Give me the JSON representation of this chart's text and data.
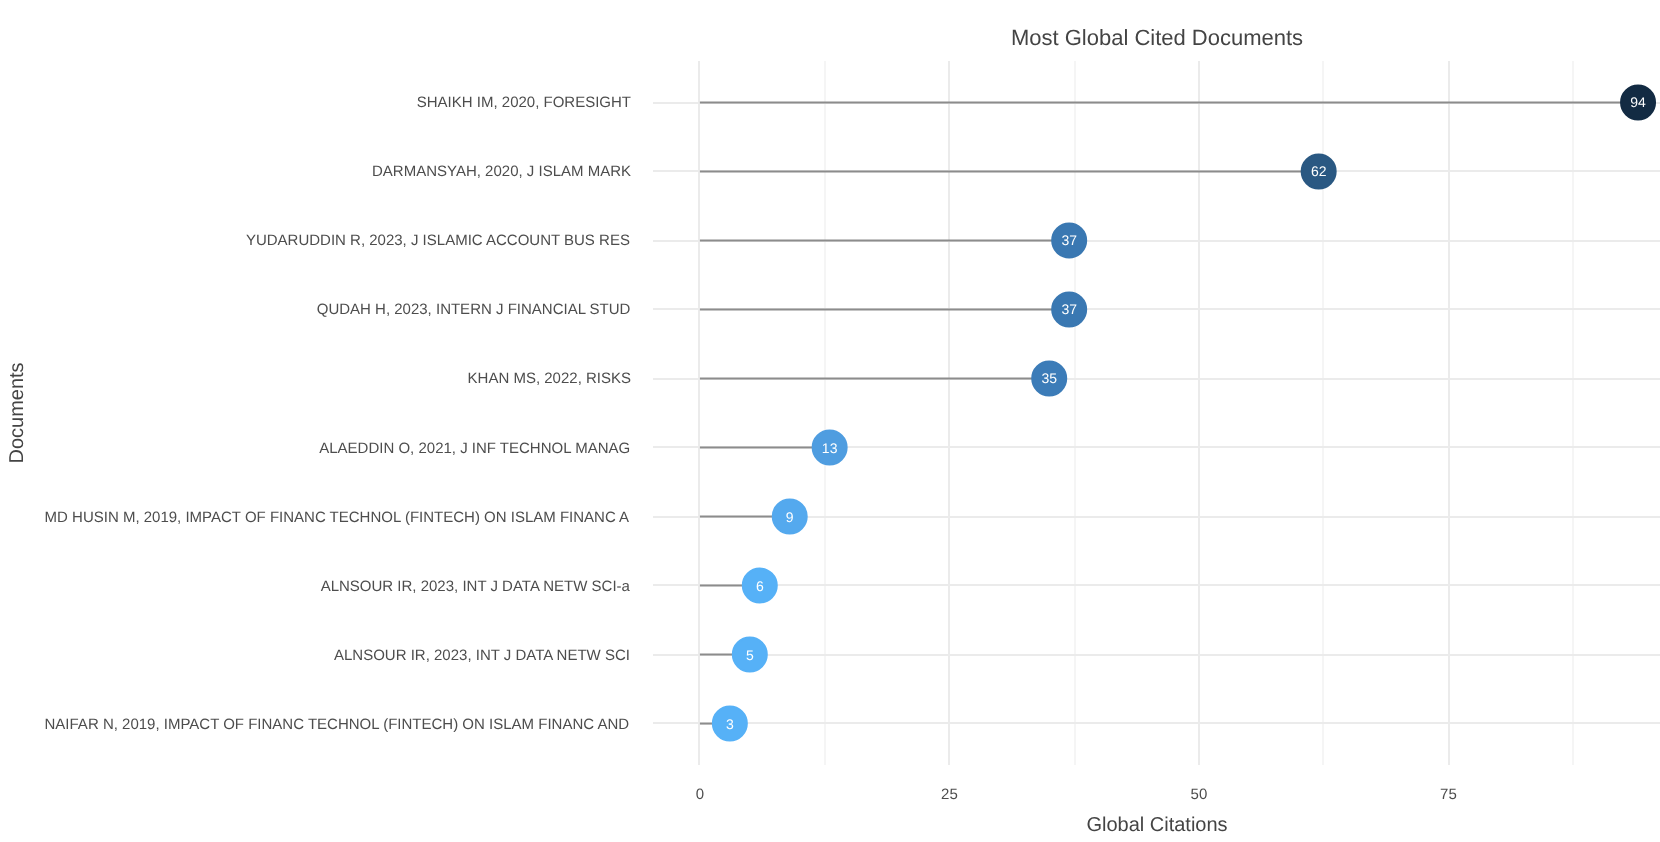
{
  "chart_data": {
    "type": "lollipop",
    "title": "Most Global Cited Documents",
    "xlabel": "Global Citations",
    "ylabel": "Documents",
    "orientation": "horizontal",
    "categories": [
      "SHAIKH IM, 2020, FORESIGHT",
      "DARMANSYAH, 2020, J ISLAM MARK",
      "YUDARUDDIN R, 2023, J ISLAMIC ACCOUNT BUS RES",
      "QUDAH H, 2023, INTERN J FINANCIAL STUD",
      "KHAN MS, 2022, RISKS",
      "ALAEDDIN O, 2021, J INF TECHNOL MANAG",
      "MD HUSIN M, 2019, IMPACT OF FINANC TECHNOL (FINTECH) ON ISLAM FINANC A",
      "ALNSOUR IR, 2023, INT J DATA NETW SCI-a",
      "ALNSOUR IR, 2023, INT J DATA NETW SCI",
      "NAIFAR N, 2019, IMPACT OF FINANC TECHNOL (FINTECH) ON ISLAM FINANC AND"
    ],
    "values": [
      94,
      62,
      37,
      37,
      35,
      13,
      9,
      6,
      5,
      3
    ],
    "colors": [
      "#132b43",
      "#2a5882",
      "#3a78b2",
      "#3a78b2",
      "#3c7cb8",
      "#4f9de0",
      "#54a9ee",
      "#56b1f7",
      "#56b1f7",
      "#56b1f7"
    ],
    "data_labels": true,
    "xlim": [
      -4.7,
      96.3
    ],
    "xticks": [
      0,
      25,
      50,
      75
    ],
    "grid": true
  }
}
